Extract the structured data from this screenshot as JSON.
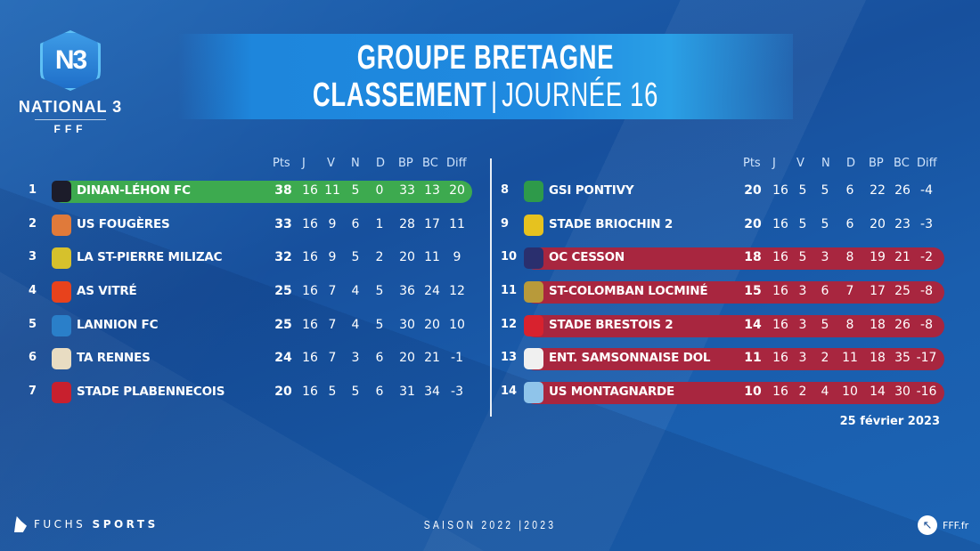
{
  "logo": {
    "badge": "N3",
    "name": "NATIONAL 3",
    "org": "FFF"
  },
  "header": {
    "title_line1": "GROUPE BRETAGNE",
    "title_bold": "CLASSEMENT",
    "separator": "|",
    "title_thin": "JOURNÉE 16"
  },
  "columns": [
    "Pts",
    "J",
    "V",
    "N",
    "D",
    "BP",
    "BC",
    "Diff"
  ],
  "colors": {
    "leader": "#3daa4f",
    "relegation": "#a8263f",
    "background": "#1a5aa8"
  },
  "left_table": [
    {
      "rank": "1",
      "team": "DINAN-LÉHON FC",
      "pts": "38",
      "j": "16",
      "v": "11",
      "n": "5",
      "d": "0",
      "bp": "33",
      "bc": "13",
      "diff": "20",
      "zone": "green",
      "crest": "#1c1c2a"
    },
    {
      "rank": "2",
      "team": "US FOUGÈRES",
      "pts": "33",
      "j": "16",
      "v": "9",
      "n": "6",
      "d": "1",
      "bp": "28",
      "bc": "17",
      "diff": "11",
      "zone": "",
      "crest": "#e07a3a"
    },
    {
      "rank": "3",
      "team": "LA ST-PIERRE MILIZAC",
      "pts": "32",
      "j": "16",
      "v": "9",
      "n": "5",
      "d": "2",
      "bp": "20",
      "bc": "11",
      "diff": "9",
      "zone": "",
      "crest": "#d6c12c"
    },
    {
      "rank": "4",
      "team": "AS VITRÉ",
      "pts": "25",
      "j": "16",
      "v": "7",
      "n": "4",
      "d": "5",
      "bp": "36",
      "bc": "24",
      "diff": "12",
      "zone": "",
      "crest": "#e8421c"
    },
    {
      "rank": "5",
      "team": "LANNION FC",
      "pts": "25",
      "j": "16",
      "v": "7",
      "n": "4",
      "d": "5",
      "bp": "30",
      "bc": "20",
      "diff": "10",
      "zone": "",
      "crest": "#2a7fc9"
    },
    {
      "rank": "6",
      "team": "TA RENNES",
      "pts": "24",
      "j": "16",
      "v": "7",
      "n": "3",
      "d": "6",
      "bp": "20",
      "bc": "21",
      "diff": "-1",
      "zone": "",
      "crest": "#e8dcc2"
    },
    {
      "rank": "7",
      "team": "STADE PLABENNECOIS",
      "pts": "20",
      "j": "16",
      "v": "5",
      "n": "5",
      "d": "6",
      "bp": "31",
      "bc": "34",
      "diff": "-3",
      "zone": "",
      "crest": "#c8202e"
    }
  ],
  "right_table": [
    {
      "rank": "8",
      "team": "GSI PONTIVY",
      "pts": "20",
      "j": "16",
      "v": "5",
      "n": "5",
      "d": "6",
      "bp": "22",
      "bc": "26",
      "diff": "-4",
      "zone": "",
      "crest": "#2e9a4a"
    },
    {
      "rank": "9",
      "team": "STADE BRIOCHIN 2",
      "pts": "20",
      "j": "16",
      "v": "5",
      "n": "5",
      "d": "6",
      "bp": "20",
      "bc": "23",
      "diff": "-3",
      "zone": "",
      "crest": "#e6c21f"
    },
    {
      "rank": "10",
      "team": "OC CESSON",
      "pts": "18",
      "j": "16",
      "v": "5",
      "n": "3",
      "d": "8",
      "bp": "19",
      "bc": "21",
      "diff": "-2",
      "zone": "red",
      "crest": "#2a2f6e"
    },
    {
      "rank": "11",
      "team": "ST-COLOMBAN LOCMINÉ",
      "pts": "15",
      "j": "16",
      "v": "3",
      "n": "6",
      "d": "7",
      "bp": "17",
      "bc": "25",
      "diff": "-8",
      "zone": "red",
      "crest": "#b89a3a"
    },
    {
      "rank": "12",
      "team": "STADE BRESTOIS 2",
      "pts": "14",
      "j": "16",
      "v": "3",
      "n": "5",
      "d": "8",
      "bp": "18",
      "bc": "26",
      "diff": "-8",
      "zone": "red",
      "crest": "#d8222e"
    },
    {
      "rank": "13",
      "team": "ENT. SAMSONNAISE DOL",
      "pts": "11",
      "j": "16",
      "v": "3",
      "n": "2",
      "d": "11",
      "bp": "18",
      "bc": "35",
      "diff": "-17",
      "zone": "red",
      "crest": "#f0f0f0"
    },
    {
      "rank": "14",
      "team": "US MONTAGNARDE",
      "pts": "10",
      "j": "16",
      "v": "2",
      "n": "4",
      "d": "10",
      "bp": "14",
      "bc": "30",
      "diff": "-16",
      "zone": "red",
      "crest": "#8fc4ea"
    }
  ],
  "date": "25 février 2023",
  "footer": {
    "sponsor_light": "FUCHS",
    "sponsor_bold": "SPORTS",
    "season": "SAISON 2022 |2023",
    "site": "FFF.fr"
  }
}
